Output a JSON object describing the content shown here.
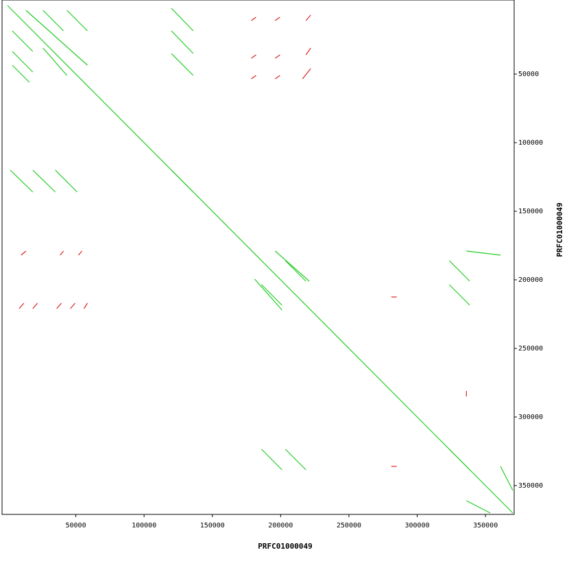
{
  "chart_data": {
    "type": "dotplot",
    "xlabel": "PRFC01000049",
    "ylabel": "PRFC01000049",
    "xlim": [
      -4000,
      371000
    ],
    "ylim": [
      -4000,
      371000
    ],
    "xticks": [
      50000,
      100000,
      150000,
      200000,
      250000,
      300000,
      350000
    ],
    "yticks": [
      50000,
      100000,
      150000,
      200000,
      250000,
      300000,
      350000
    ],
    "series": [
      {
        "color": "#22cc22",
        "segments": [
          [
            0,
            0,
            370000,
            370000
          ],
          [
            13500,
            3500,
            58500,
            43500
          ],
          [
            3500,
            18500,
            18500,
            33500
          ],
          [
            3500,
            33500,
            18500,
            48500
          ],
          [
            3500,
            43500,
            16000,
            56000
          ],
          [
            26000,
            3500,
            41000,
            18500
          ],
          [
            43500,
            3500,
            58500,
            18500
          ],
          [
            26000,
            31000,
            43500,
            51000
          ],
          [
            120000,
            2000,
            136000,
            18500
          ],
          [
            120000,
            18500,
            136000,
            35000
          ],
          [
            120000,
            35000,
            136000,
            51000
          ],
          [
            2000,
            120000,
            18500,
            136000
          ],
          [
            18500,
            120000,
            35000,
            136000
          ],
          [
            35000,
            120000,
            51000,
            136000
          ],
          [
            120000,
            120000,
            136000,
            136000
          ],
          [
            203500,
            186000,
            218500,
            201000
          ],
          [
            186000,
            203500,
            201000,
            218500
          ],
          [
            196000,
            179000,
            221000,
            201000
          ],
          [
            181000,
            199500,
            201000,
            222000
          ],
          [
            323500,
            186000,
            338500,
            201000
          ],
          [
            323500,
            203500,
            338500,
            218500
          ],
          [
            186000,
            323500,
            201000,
            338500
          ],
          [
            203500,
            323500,
            218500,
            338500
          ],
          [
            323500,
            323500,
            338500,
            338500
          ],
          [
            361000,
            336000,
            370000,
            353500
          ],
          [
            336000,
            179000,
            361000,
            182000
          ],
          [
            336000,
            361000,
            353500,
            370000
          ]
        ]
      },
      {
        "color": "#dd2222",
        "segments": [
          [
            178500,
            11000,
            182000,
            8500
          ],
          [
            196000,
            11000,
            199500,
            8500
          ],
          [
            218500,
            11000,
            222000,
            7000
          ],
          [
            216000,
            53500,
            222000,
            46000
          ],
          [
            218500,
            36000,
            222000,
            31000
          ],
          [
            178500,
            53500,
            182000,
            51000
          ],
          [
            196000,
            53500,
            199500,
            51000
          ],
          [
            178500,
            38500,
            182000,
            36000
          ],
          [
            196000,
            38500,
            199500,
            36000
          ],
          [
            8500,
            221000,
            12000,
            217000
          ],
          [
            18500,
            221000,
            22000,
            217000
          ],
          [
            36000,
            221000,
            39500,
            217000
          ],
          [
            46000,
            221000,
            49500,
            217000
          ],
          [
            56000,
            221000,
            58500,
            217000
          ],
          [
            10000,
            182000,
            13500,
            179000
          ],
          [
            38500,
            182000,
            41000,
            179000
          ],
          [
            52000,
            182000,
            54500,
            179000
          ],
          [
            281000,
            212500,
            285000,
            212500
          ],
          [
            281000,
            336000,
            285000,
            336000
          ],
          [
            336000,
            281000,
            336000,
            285000
          ]
        ]
      }
    ]
  }
}
